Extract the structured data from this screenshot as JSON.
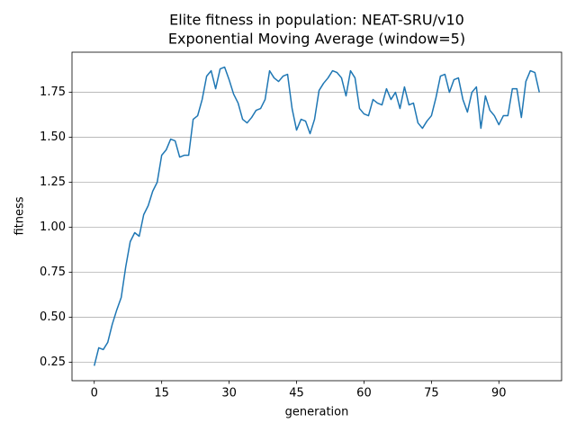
{
  "chart_data": {
    "type": "line",
    "title": "Elite fitness in population: NEAT-SRU/v10",
    "subtitle": "Exponential Moving Average (window=5)",
    "x_label": "generation",
    "y_label": "fitness",
    "x": [
      0,
      1,
      2,
      3,
      4,
      5,
      6,
      7,
      8,
      9,
      10,
      11,
      12,
      13,
      14,
      15,
      16,
      17,
      18,
      19,
      20,
      21,
      22,
      23,
      24,
      25,
      26,
      27,
      28,
      29,
      30,
      31,
      32,
      33,
      34,
      35,
      36,
      37,
      38,
      39,
      40,
      41,
      42,
      43,
      44,
      45,
      46,
      47,
      48,
      49,
      50,
      51,
      52,
      53,
      54,
      55,
      56,
      57,
      58,
      59,
      60,
      61,
      62,
      63,
      64,
      65,
      66,
      67,
      68,
      69,
      70,
      71,
      72,
      73,
      74,
      75,
      76,
      77,
      78,
      79,
      80,
      81,
      82,
      83,
      84,
      85,
      86,
      87,
      88,
      89,
      90,
      91,
      92,
      93,
      94,
      95,
      96,
      97,
      98,
      99
    ],
    "series": [
      {
        "name": "fitness",
        "color": "#1f77b4",
        "values": [
          0.23,
          0.33,
          0.32,
          0.36,
          0.46,
          0.54,
          0.61,
          0.78,
          0.92,
          0.97,
          0.95,
          1.07,
          1.12,
          1.2,
          1.25,
          1.4,
          1.43,
          1.49,
          1.48,
          1.39,
          1.4,
          1.4,
          1.6,
          1.62,
          1.71,
          1.84,
          1.87,
          1.77,
          1.88,
          1.89,
          1.82,
          1.74,
          1.69,
          1.6,
          1.58,
          1.61,
          1.65,
          1.66,
          1.71,
          1.87,
          1.83,
          1.81,
          1.84,
          1.85,
          1.66,
          1.54,
          1.6,
          1.59,
          1.52,
          1.6,
          1.76,
          1.8,
          1.83,
          1.87,
          1.86,
          1.83,
          1.73,
          1.87,
          1.83,
          1.66,
          1.63,
          1.62,
          1.71,
          1.69,
          1.68,
          1.77,
          1.71,
          1.75,
          1.66,
          1.78,
          1.68,
          1.69,
          1.58,
          1.55,
          1.59,
          1.62,
          1.72,
          1.84,
          1.85,
          1.75,
          1.82,
          1.83,
          1.71,
          1.64,
          1.75,
          1.78,
          1.55,
          1.73,
          1.65,
          1.62,
          1.57,
          1.62,
          1.62,
          1.77,
          1.77,
          1.61,
          1.81,
          1.87,
          1.86,
          1.75
        ]
      }
    ],
    "xlim": [
      -4.95,
      103.95
    ],
    "xticks": [
      0,
      15,
      30,
      45,
      60,
      75,
      90
    ],
    "ylim": [
      0.147,
      1.973
    ],
    "yticks": [
      0.25,
      {
        "value": 0.5,
        "label": "0.50"
      },
      0.75,
      {
        "value": 1.0,
        "label": "1.00"
      },
      1.25,
      {
        "value": 1.5,
        "label": "1.50"
      },
      1.75
    ],
    "grid": "y"
  }
}
